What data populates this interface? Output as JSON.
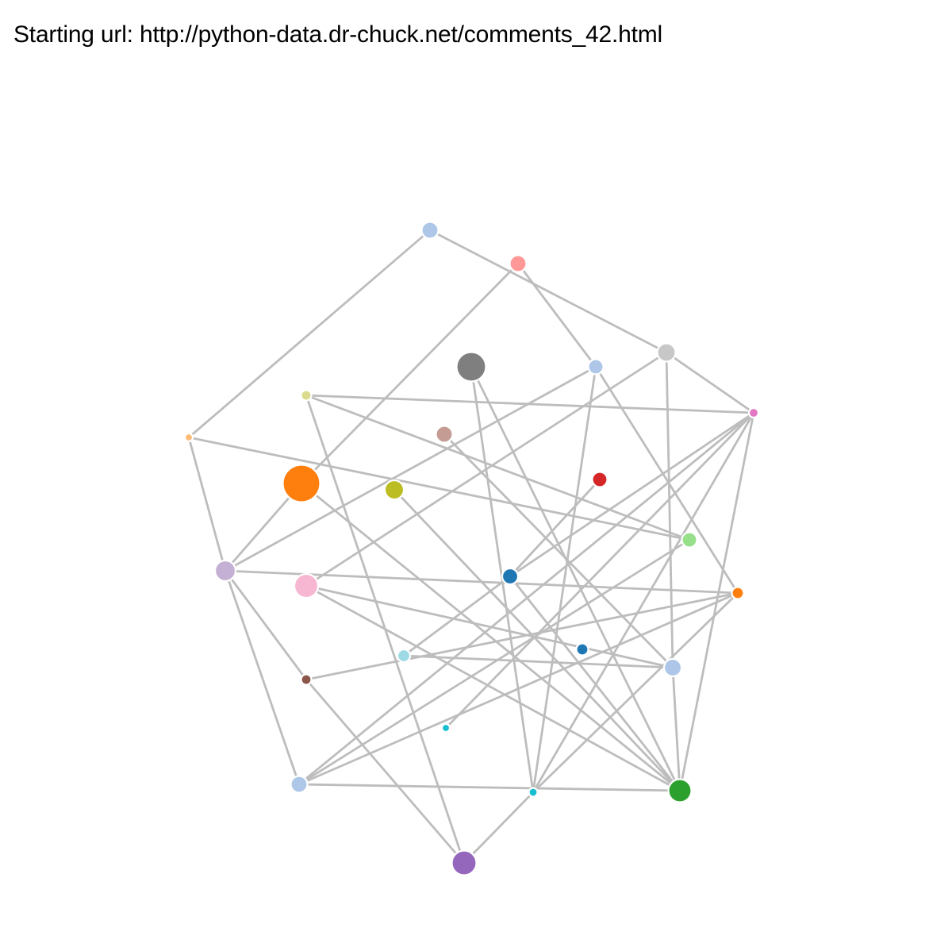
{
  "header": {
    "label": "Starting url:",
    "url": "http://python-data.dr-chuck.net/comments_42.html"
  },
  "graph": {
    "edge_color": "#bdbdbd",
    "node_stroke": "#ffffff",
    "nodes": [
      {
        "id": "n1",
        "color": "#aec7e8"
      },
      {
        "id": "n2",
        "color": "#ff9896"
      },
      {
        "id": "n3",
        "color": "#c7c7c7"
      },
      {
        "id": "n4",
        "color": "#7f7f7f"
      },
      {
        "id": "n5",
        "color": "#aec7e8"
      },
      {
        "id": "n6",
        "color": "#dbdb8d"
      },
      {
        "id": "n7",
        "color": "#e377c2"
      },
      {
        "id": "n8",
        "color": "#ffbb78"
      },
      {
        "id": "n9",
        "color": "#c49c94"
      },
      {
        "id": "n10",
        "color": "#ff7f0e"
      },
      {
        "id": "n11",
        "color": "#bcbd22"
      },
      {
        "id": "n12",
        "color": "#d62728"
      },
      {
        "id": "n13",
        "color": "#98df8a"
      },
      {
        "id": "n14",
        "color": "#c5b0d5"
      },
      {
        "id": "n15",
        "color": "#f7b6d2"
      },
      {
        "id": "n16",
        "color": "#1f77b4"
      },
      {
        "id": "n17",
        "color": "#ff7f0e"
      },
      {
        "id": "n18",
        "color": "#9edae5"
      },
      {
        "id": "n19",
        "color": "#1f77b4"
      },
      {
        "id": "n20",
        "color": "#aec7e8"
      },
      {
        "id": "n21",
        "color": "#8c564b"
      },
      {
        "id": "n22",
        "color": "#17becf"
      },
      {
        "id": "n23",
        "color": "#aec7e8"
      },
      {
        "id": "n24",
        "color": "#17becf"
      },
      {
        "id": "n25",
        "color": "#2ca02c"
      },
      {
        "id": "n26",
        "color": "#9467bd"
      }
    ],
    "edges": [
      [
        "n1",
        "n8"
      ],
      [
        "n1",
        "n3"
      ],
      [
        "n2",
        "n10"
      ],
      [
        "n2",
        "n5"
      ],
      [
        "n3",
        "n7"
      ],
      [
        "n3",
        "n20"
      ],
      [
        "n3",
        "n15"
      ],
      [
        "n5",
        "n14"
      ],
      [
        "n5",
        "n24"
      ],
      [
        "n5",
        "n17"
      ],
      [
        "n4",
        "n24"
      ],
      [
        "n4",
        "n25"
      ],
      [
        "n6",
        "n7"
      ],
      [
        "n6",
        "n13"
      ],
      [
        "n6",
        "n26"
      ],
      [
        "n8",
        "n14"
      ],
      [
        "n8",
        "n13"
      ],
      [
        "n10",
        "n14"
      ],
      [
        "n10",
        "n25"
      ],
      [
        "n9",
        "n20"
      ],
      [
        "n11",
        "n25"
      ],
      [
        "n12",
        "n16"
      ],
      [
        "n7",
        "n16"
      ],
      [
        "n7",
        "n23"
      ],
      [
        "n7",
        "n24"
      ],
      [
        "n7",
        "n22"
      ],
      [
        "n7",
        "n25"
      ],
      [
        "n13",
        "n23"
      ],
      [
        "n14",
        "n17"
      ],
      [
        "n14",
        "n21"
      ],
      [
        "n14",
        "n23"
      ],
      [
        "n15",
        "n20"
      ],
      [
        "n15",
        "n25"
      ],
      [
        "n16",
        "n18"
      ],
      [
        "n16",
        "n25"
      ],
      [
        "n17",
        "n21"
      ],
      [
        "n17",
        "n23"
      ],
      [
        "n17",
        "n24"
      ],
      [
        "n18",
        "n20"
      ],
      [
        "n20",
        "n25"
      ],
      [
        "n21",
        "n26"
      ],
      [
        "n23",
        "n25"
      ],
      [
        "n24",
        "n26"
      ]
    ]
  }
}
